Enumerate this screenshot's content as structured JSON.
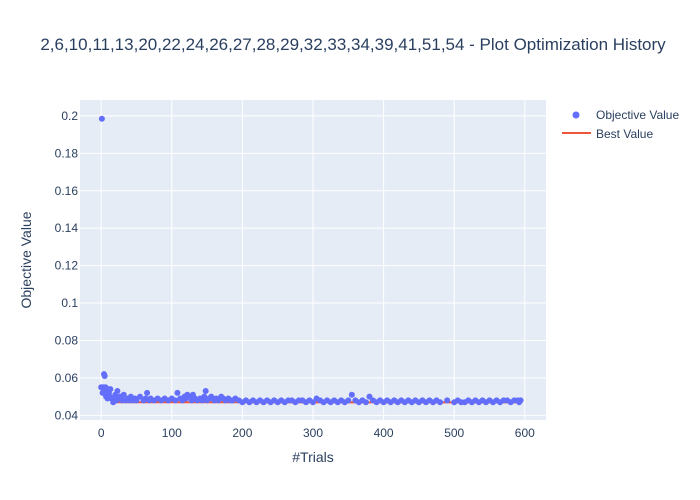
{
  "chart_data": {
    "type": "scatter",
    "title": "2,6,10,11,13,20,22,24,26,27,28,29,32,33,34,39,41,51,54 - Plot Optimization History",
    "xlabel": "#Trials",
    "ylabel": "Objective Value",
    "xlim": [
      -30,
      630
    ],
    "ylim": [
      0.0375,
      0.2085
    ],
    "x_ticks": [
      0,
      100,
      200,
      300,
      400,
      500,
      600
    ],
    "y_ticks": [
      0.04,
      0.06,
      0.08,
      0.1,
      0.12,
      0.14,
      0.16,
      0.18,
      0.2
    ],
    "x_tick_labels": [
      "0",
      "100",
      "200",
      "300",
      "400",
      "500",
      "600"
    ],
    "y_tick_labels": [
      "0.04",
      "0.06",
      "0.08",
      "0.1",
      "0.12",
      "0.14",
      "0.16",
      "0.18",
      "0.2"
    ],
    "grid": true,
    "legend_position": "top-right",
    "colors": {
      "objective": "#636efa",
      "best": "#ef553b",
      "plot_bg": "#e5ecf6",
      "grid": "#ffffff",
      "text": "#2a3f5f"
    },
    "series": [
      {
        "name": "Objective Value",
        "mode": "markers",
        "points": [
          [
            0,
            0.055
          ],
          [
            1,
            0.1985
          ],
          [
            2,
            0.052
          ],
          [
            3,
            0.055
          ],
          [
            4,
            0.062
          ],
          [
            5,
            0.061
          ],
          [
            6,
            0.055
          ],
          [
            7,
            0.05
          ],
          [
            8,
            0.053
          ],
          [
            9,
            0.049
          ],
          [
            10,
            0.054
          ],
          [
            11,
            0.052
          ],
          [
            12,
            0.05
          ],
          [
            13,
            0.054
          ],
          [
            15,
            0.049
          ],
          [
            17,
            0.047
          ],
          [
            18,
            0.048
          ],
          [
            20,
            0.051
          ],
          [
            22,
            0.048
          ],
          [
            23,
            0.053
          ],
          [
            25,
            0.049
          ],
          [
            27,
            0.05
          ],
          [
            30,
            0.048
          ],
          [
            32,
            0.051
          ],
          [
            35,
            0.048
          ],
          [
            38,
            0.049
          ],
          [
            40,
            0.048
          ],
          [
            42,
            0.05
          ],
          [
            45,
            0.048
          ],
          [
            48,
            0.049
          ],
          [
            50,
            0.048
          ],
          [
            55,
            0.05
          ],
          [
            60,
            0.048
          ],
          [
            63,
            0.049
          ],
          [
            65,
            0.052
          ],
          [
            68,
            0.048
          ],
          [
            70,
            0.049
          ],
          [
            75,
            0.048
          ],
          [
            80,
            0.049
          ],
          [
            85,
            0.048
          ],
          [
            90,
            0.049
          ],
          [
            95,
            0.048
          ],
          [
            100,
            0.049
          ],
          [
            105,
            0.048
          ],
          [
            108,
            0.052
          ],
          [
            112,
            0.049
          ],
          [
            115,
            0.048
          ],
          [
            118,
            0.05
          ],
          [
            120,
            0.049
          ],
          [
            122,
            0.051
          ],
          [
            125,
            0.05
          ],
          [
            128,
            0.048
          ],
          [
            130,
            0.051
          ],
          [
            133,
            0.049
          ],
          [
            136,
            0.048
          ],
          [
            140,
            0.049
          ],
          [
            143,
            0.048
          ],
          [
            146,
            0.05
          ],
          [
            148,
            0.053
          ],
          [
            150,
            0.048
          ],
          [
            153,
            0.049
          ],
          [
            156,
            0.05
          ],
          [
            160,
            0.048
          ],
          [
            163,
            0.049
          ],
          [
            166,
            0.048
          ],
          [
            170,
            0.05
          ],
          [
            173,
            0.049
          ],
          [
            176,
            0.048
          ],
          [
            180,
            0.049
          ],
          [
            183,
            0.048
          ],
          [
            186,
            0.048
          ],
          [
            190,
            0.049
          ],
          [
            195,
            0.048
          ],
          [
            200,
            0.047
          ],
          [
            205,
            0.048
          ],
          [
            210,
            0.047
          ],
          [
            215,
            0.048
          ],
          [
            220,
            0.047
          ],
          [
            225,
            0.048
          ],
          [
            230,
            0.047
          ],
          [
            235,
            0.048
          ],
          [
            240,
            0.047
          ],
          [
            245,
            0.048
          ],
          [
            250,
            0.047
          ],
          [
            255,
            0.048
          ],
          [
            260,
            0.047
          ],
          [
            265,
            0.048
          ],
          [
            270,
            0.048
          ],
          [
            275,
            0.047
          ],
          [
            280,
            0.048
          ],
          [
            285,
            0.048
          ],
          [
            290,
            0.047
          ],
          [
            295,
            0.048
          ],
          [
            300,
            0.047
          ],
          [
            305,
            0.049
          ],
          [
            310,
            0.048
          ],
          [
            315,
            0.047
          ],
          [
            320,
            0.048
          ],
          [
            325,
            0.047
          ],
          [
            330,
            0.048
          ],
          [
            335,
            0.047
          ],
          [
            340,
            0.048
          ],
          [
            345,
            0.047
          ],
          [
            350,
            0.048
          ],
          [
            355,
            0.051
          ],
          [
            360,
            0.048
          ],
          [
            365,
            0.047
          ],
          [
            370,
            0.048
          ],
          [
            375,
            0.047
          ],
          [
            380,
            0.05
          ],
          [
            385,
            0.048
          ],
          [
            390,
            0.047
          ],
          [
            395,
            0.048
          ],
          [
            400,
            0.047
          ],
          [
            405,
            0.048
          ],
          [
            410,
            0.047
          ],
          [
            415,
            0.048
          ],
          [
            420,
            0.047
          ],
          [
            425,
            0.048
          ],
          [
            430,
            0.047
          ],
          [
            435,
            0.048
          ],
          [
            440,
            0.047
          ],
          [
            445,
            0.048
          ],
          [
            450,
            0.047
          ],
          [
            455,
            0.048
          ],
          [
            460,
            0.047
          ],
          [
            465,
            0.048
          ],
          [
            470,
            0.047
          ],
          [
            475,
            0.048
          ],
          [
            480,
            0.047
          ],
          [
            490,
            0.048
          ],
          [
            500,
            0.047
          ],
          [
            505,
            0.048
          ],
          [
            510,
            0.047
          ],
          [
            515,
            0.047
          ],
          [
            520,
            0.048
          ],
          [
            525,
            0.047
          ],
          [
            530,
            0.048
          ],
          [
            535,
            0.047
          ],
          [
            540,
            0.048
          ],
          [
            545,
            0.047
          ],
          [
            550,
            0.048
          ],
          [
            555,
            0.047
          ],
          [
            560,
            0.048
          ],
          [
            565,
            0.047
          ],
          [
            570,
            0.048
          ],
          [
            575,
            0.048
          ],
          [
            580,
            0.047
          ],
          [
            585,
            0.048
          ],
          [
            590,
            0.048
          ],
          [
            592,
            0.047
          ],
          [
            594,
            0.048
          ]
        ]
      },
      {
        "name": "Best Value",
        "mode": "lines",
        "step_points": [
          [
            0,
            0.055
          ],
          [
            2,
            0.052
          ],
          [
            7,
            0.05
          ],
          [
            9,
            0.049
          ],
          [
            17,
            0.047
          ],
          [
            200,
            0.0469
          ],
          [
            595,
            0.0468
          ]
        ]
      }
    ]
  }
}
